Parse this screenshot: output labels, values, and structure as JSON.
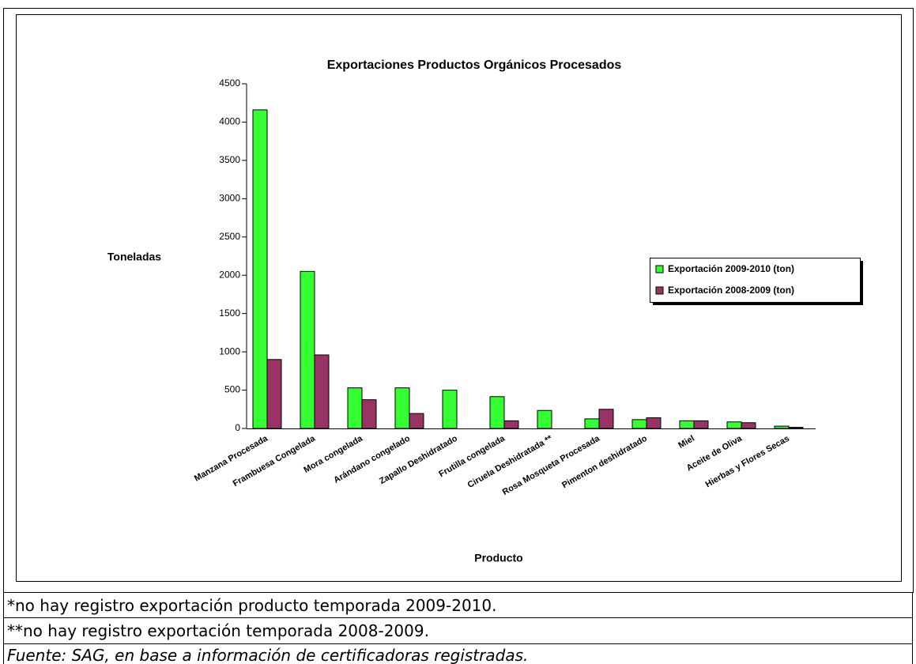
{
  "chart_data": {
    "type": "bar",
    "title": "Exportaciones Productos Orgánicos Procesados",
    "y_label": "Toneladas",
    "x_label": "Producto",
    "categories": [
      "Manzana Procesada",
      "Frambuesa Congelada",
      "Mora congelada",
      "Arándano congelado",
      "Zapallo Deshidratado",
      "Frutilla congelada",
      "Ciruela Deshidratada **",
      "Rosa Mosqueta Procesada",
      "Pimenton deshidratado",
      "Miel",
      "Aceite de Oliva",
      "Hierbas y Flores Secas"
    ],
    "series": [
      {
        "name": "Exportación 2009-2010 (ton)",
        "color": "#33ff33",
        "values": [
          4160,
          2050,
          530,
          530,
          500,
          415,
          235,
          125,
          115,
          100,
          85,
          30
        ]
      },
      {
        "name": "Exportación 2008-2009 (ton)",
        "color": "#993366",
        "values": [
          900,
          960,
          375,
          195,
          null,
          100,
          null,
          250,
          140,
          100,
          75,
          15
        ]
      }
    ],
    "ylim": [
      0,
      4500
    ],
    "yticks": [
      0,
      500,
      1000,
      1500,
      2000,
      2500,
      3000,
      3500,
      4000,
      4500
    ],
    "grid": false,
    "legend": "right"
  },
  "notes": [
    "*no hay registro exportación producto temporada 2009-2010.",
    "**no hay registro exportación temporada 2008-2009.",
    "Fuente: SAG, en base a información de certificadoras registradas."
  ]
}
